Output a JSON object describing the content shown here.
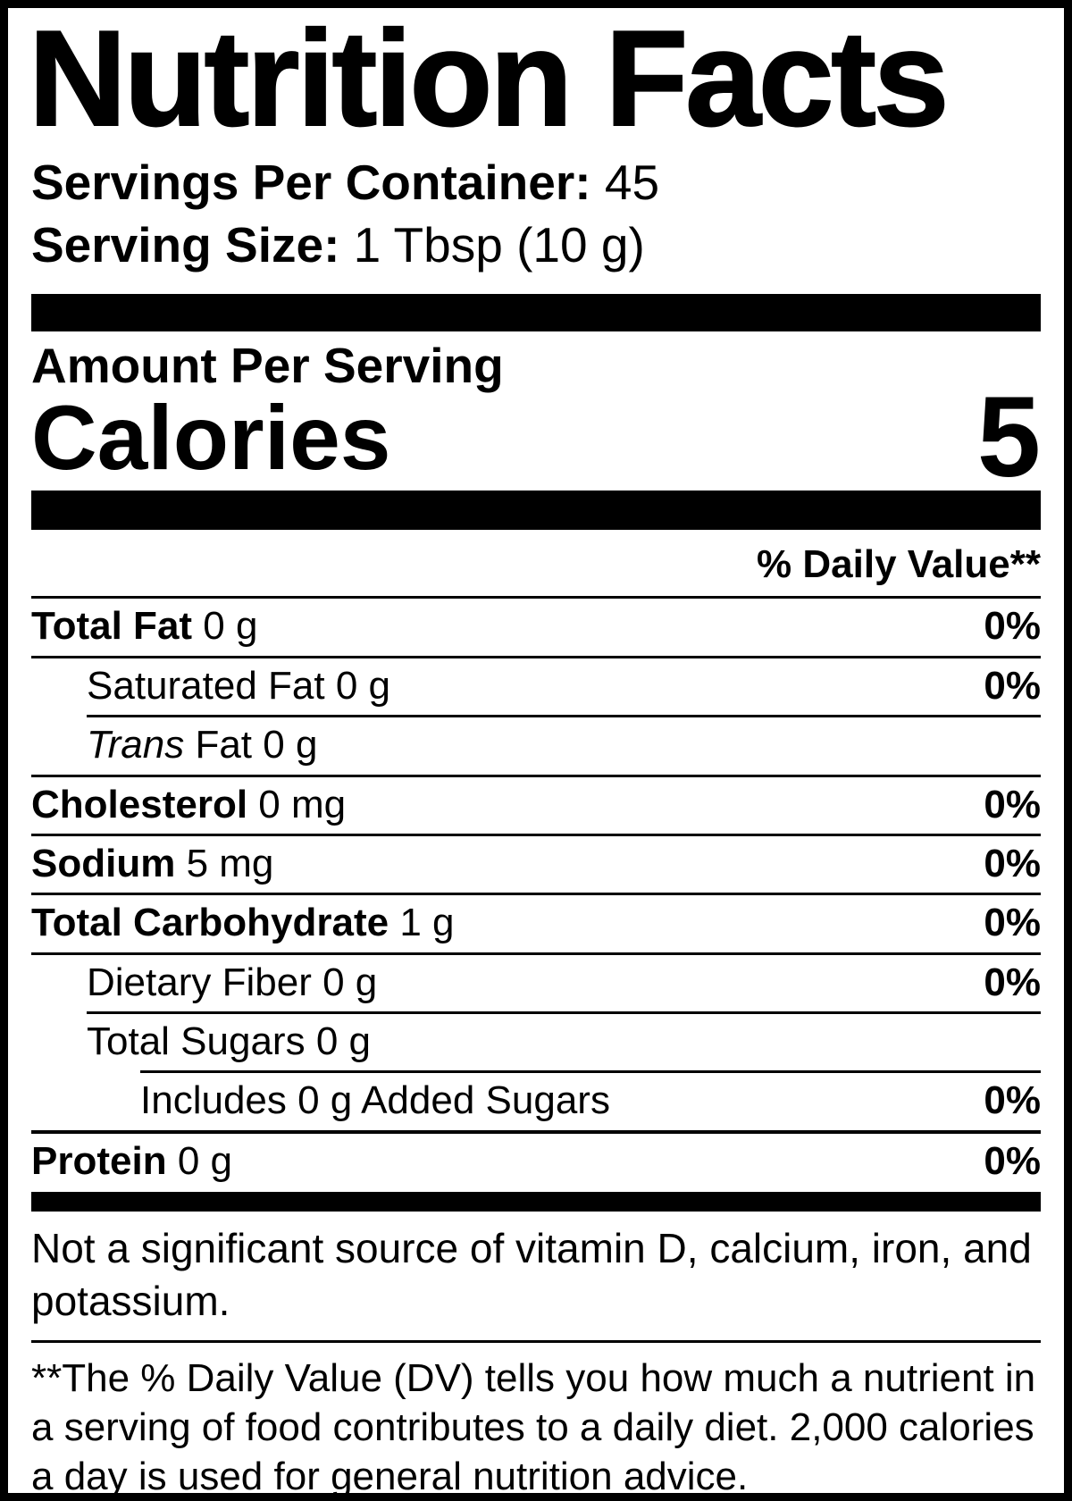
{
  "label": {
    "title": "Nutrition Facts",
    "servings_per_container_label": "Servings Per Container:",
    "servings_per_container_value": "45",
    "serving_size_label": "Serving Size:",
    "serving_size_value": "1 Tbsp (10 g)",
    "amount_per_serving": "Amount Per Serving",
    "calories_label": "Calories",
    "calories_value": "5",
    "daily_value_header": "% Daily Value**",
    "rows": [
      {
        "name": "Total Fat",
        "amount": "0 g",
        "dv": "0%"
      },
      {
        "name": "Saturated Fat",
        "amount": "0 g",
        "dv": "0%"
      },
      {
        "name": "Trans",
        "amount": "Fat 0 g",
        "dv": ""
      },
      {
        "name": "Cholesterol",
        "amount": "0 mg",
        "dv": "0%"
      },
      {
        "name": "Sodium",
        "amount": "5 mg",
        "dv": "0%"
      },
      {
        "name": "Total Carbohydrate",
        "amount": "1 g",
        "dv": "0%"
      },
      {
        "name": "Dietary Fiber",
        "amount": "0 g",
        "dv": "0%"
      },
      {
        "name": "Total Sugars",
        "amount": "0 g",
        "dv": ""
      },
      {
        "name": "Includes 0 g Added Sugars",
        "amount": "",
        "dv": "0%"
      },
      {
        "name": "Protein",
        "amount": "0 g",
        "dv": "0%"
      }
    ],
    "not_significant_text": "Not a significant source of vitamin D, calcium, iron, and potassium.",
    "footnote": "**The % Daily Value (DV) tells you how much a nutrient in a serving of food contributes to a daily diet. 2,000 calories a day is used for general nutrition advice.",
    "colors": {
      "text": "#000000",
      "background": "#ffffff"
    }
  }
}
